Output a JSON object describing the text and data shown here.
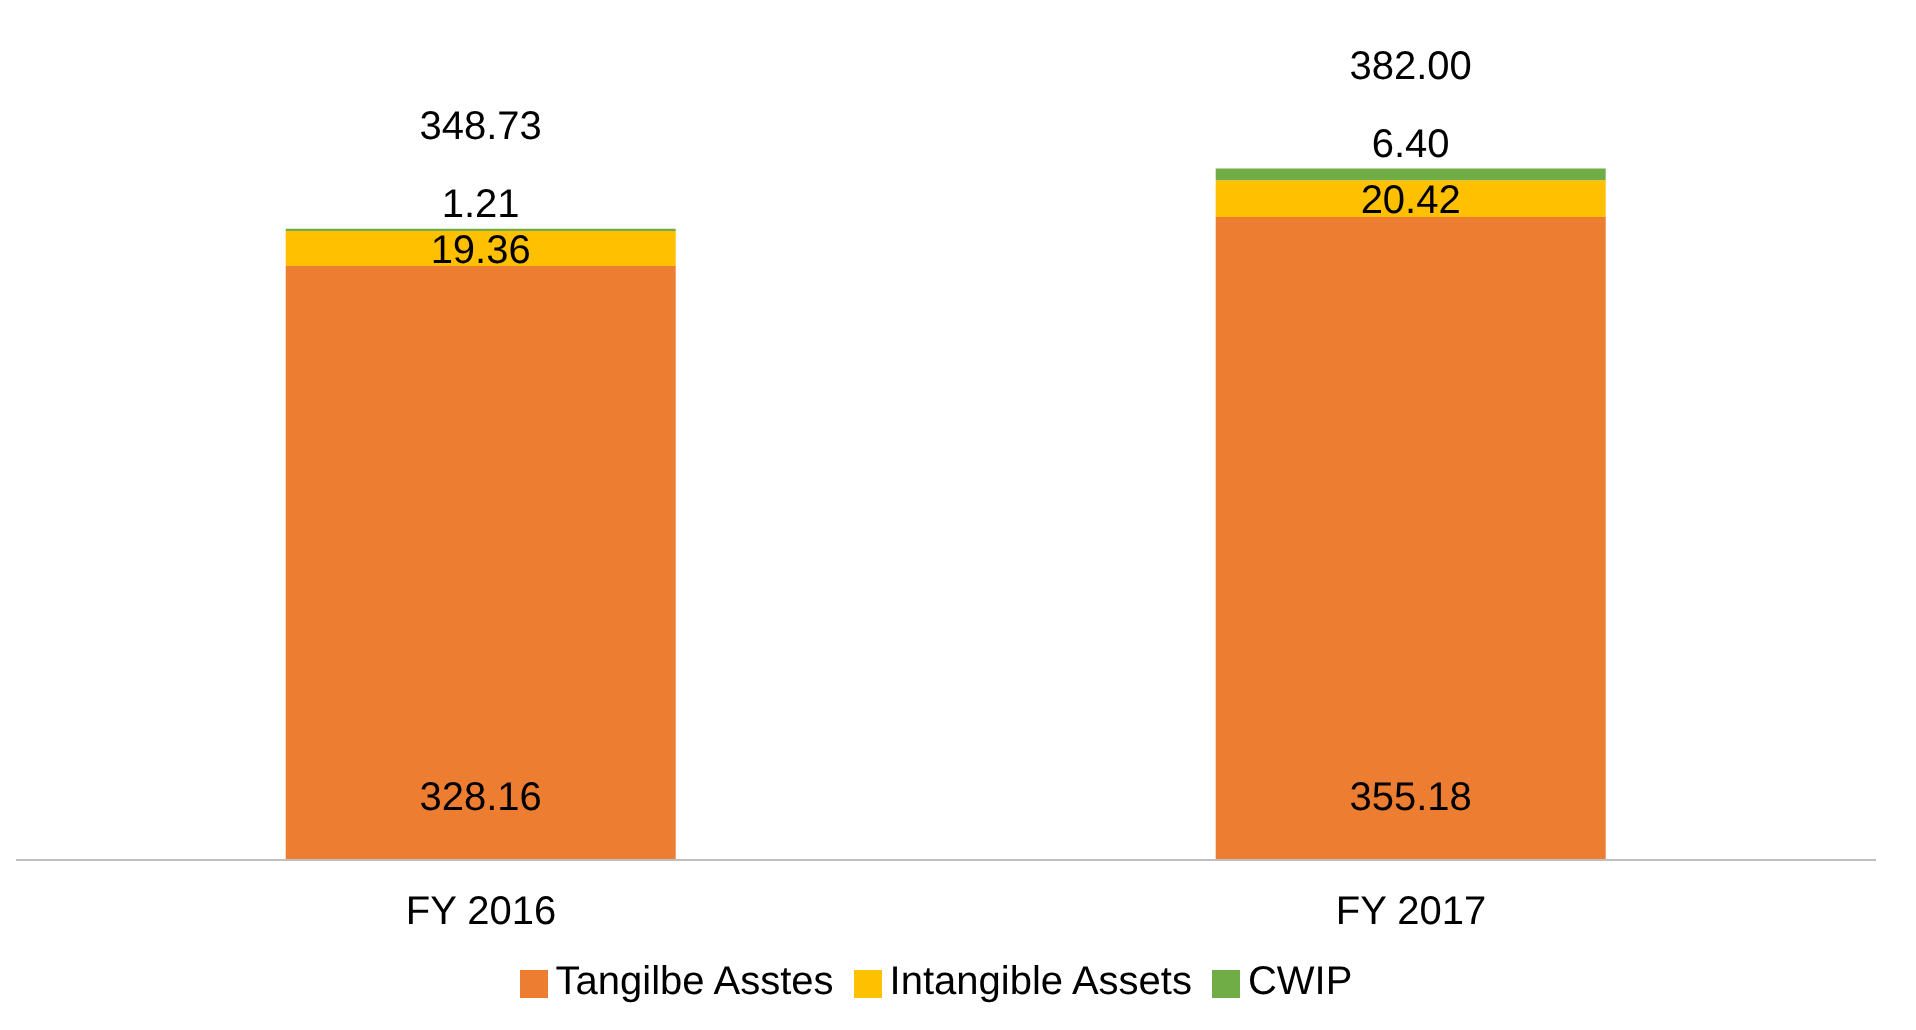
{
  "chart_data": {
    "type": "bar",
    "stacked": true,
    "categories": [
      "FY 2016",
      "FY 2017"
    ],
    "series": [
      {
        "name": "Tangilbe Asstes",
        "color": "#ed7d31",
        "values": [
          328.16,
          355.18
        ],
        "value_labels": [
          "328.16",
          "355.18"
        ]
      },
      {
        "name": "Intangible Assets",
        "color": "#ffc000",
        "values": [
          19.36,
          20.42
        ],
        "value_labels": [
          "19.36",
          "20.42"
        ]
      },
      {
        "name": "CWIP",
        "color": "#70ad47",
        "values": [
          1.21,
          6.4
        ],
        "value_labels": [
          "1.21",
          "6.40"
        ]
      }
    ],
    "totals": [
      "348.73",
      "382.00"
    ],
    "legend": "bottom",
    "grid": false
  }
}
